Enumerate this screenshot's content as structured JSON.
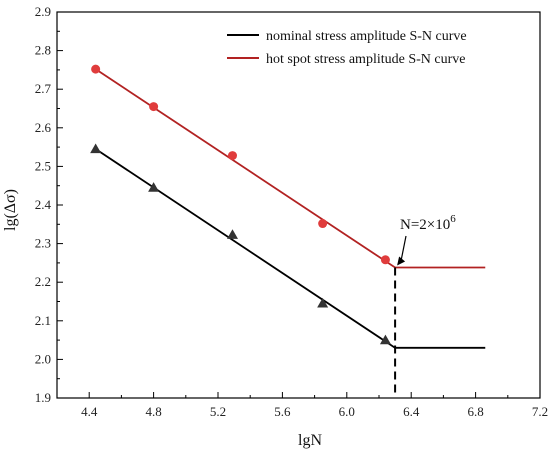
{
  "chart_data": {
    "type": "line",
    "xlabel": "lgN",
    "ylabel": "lg(Δσ)",
    "xlim": [
      4.2,
      7.2
    ],
    "ylim": [
      1.9,
      2.9
    ],
    "x_ticks": [
      "4.4",
      "4.8",
      "5.2",
      "5.6",
      "6.0",
      "6.4",
      "6.8",
      "7.2"
    ],
    "y_ticks": [
      "1.9",
      "2.0",
      "2.1",
      "2.2",
      "2.3",
      "2.4",
      "2.5",
      "2.6",
      "2.7",
      "2.8",
      "2.9"
    ],
    "grid": false,
    "legend_position": "top-right",
    "series": [
      {
        "name": "nominal stress amplitude S-N curve",
        "color": "#000000",
        "marker": "triangle",
        "marker_color": "#333333",
        "points": [
          [
            4.44,
            2.545
          ],
          [
            4.8,
            2.445
          ],
          [
            5.29,
            2.323
          ],
          [
            5.85,
            2.145
          ],
          [
            6.24,
            2.05
          ]
        ],
        "fit_line": [
          [
            4.44,
            2.545
          ],
          [
            6.3,
            2.03
          ],
          [
            6.86,
            2.03
          ]
        ]
      },
      {
        "name": "hot spot stress amplitude S-N curve",
        "color": "#b22222",
        "marker": "circle",
        "marker_color": "#e03c3c",
        "points": [
          [
            4.44,
            2.752
          ],
          [
            4.8,
            2.655
          ],
          [
            5.29,
            2.528
          ],
          [
            5.85,
            2.352
          ],
          [
            6.24,
            2.258
          ]
        ],
        "fit_line": [
          [
            4.44,
            2.752
          ],
          [
            6.3,
            2.238
          ],
          [
            6.86,
            2.238
          ]
        ]
      }
    ],
    "vertical_line": {
      "x": 6.3,
      "y_from": 1.9,
      "y_to": 2.238,
      "style": "dashed"
    },
    "annotation": {
      "text_main": "N=2×10",
      "text_sup": "6",
      "arrow_to": [
        6.3,
        2.238
      ],
      "text_anchor": [
        6.25,
        2.3
      ]
    }
  }
}
